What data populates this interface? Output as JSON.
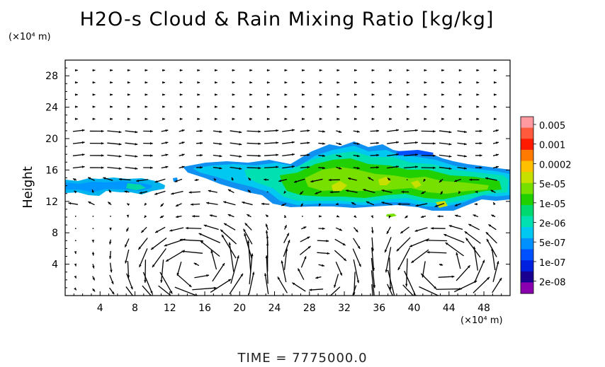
{
  "chart_data": {
    "type": "heatmap",
    "title": "H2O-s Cloud & Rain Mixing Ratio [kg/kg]",
    "ylabel": "Height",
    "x_unit": "(×10⁴ m)",
    "y_unit": "(×10⁴ m)",
    "footer": "TIME = 7775000.0",
    "xlim": [
      0,
      51
    ],
    "ylim": [
      0,
      30
    ],
    "x_ticks": [
      4,
      8,
      12,
      16,
      20,
      24,
      28,
      32,
      36,
      40,
      44,
      48
    ],
    "y_ticks": [
      4,
      8,
      12,
      16,
      20,
      24,
      28
    ],
    "grid": false,
    "overlay": "wind vectors",
    "colorbar": {
      "placement": "right",
      "labels": [
        "0.005",
        "0.001",
        "0.0002",
        "5e-05",
        "1e-05",
        "2e-06",
        "5e-07",
        "1e-07",
        "2e-08"
      ],
      "colors": [
        "#ff9aa0",
        "#ff5a3c",
        "#ff1a00",
        "#ff7a00",
        "#ffc000",
        "#c8e000",
        "#78e000",
        "#20d000",
        "#00d870",
        "#00e0b0",
        "#00c8f0",
        "#0090ff",
        "#0050ff",
        "#0020e0",
        "#1a0090",
        "#8a00b0"
      ]
    },
    "cloud_regions": [
      {
        "name": "left band",
        "x_range": [
          0,
          13
        ],
        "z_range": [
          12.5,
          14.5
        ],
        "max_level": "1e-05"
      },
      {
        "name": "main cloud layer",
        "x_range": [
          13,
          51
        ],
        "z_range": [
          11,
          19.5
        ],
        "max_level": "5e-05"
      },
      {
        "name": "isolated cell",
        "x_range": [
          37,
          39
        ],
        "z_range": [
          9.7,
          10.3
        ],
        "max_level": "1e-05"
      }
    ]
  }
}
